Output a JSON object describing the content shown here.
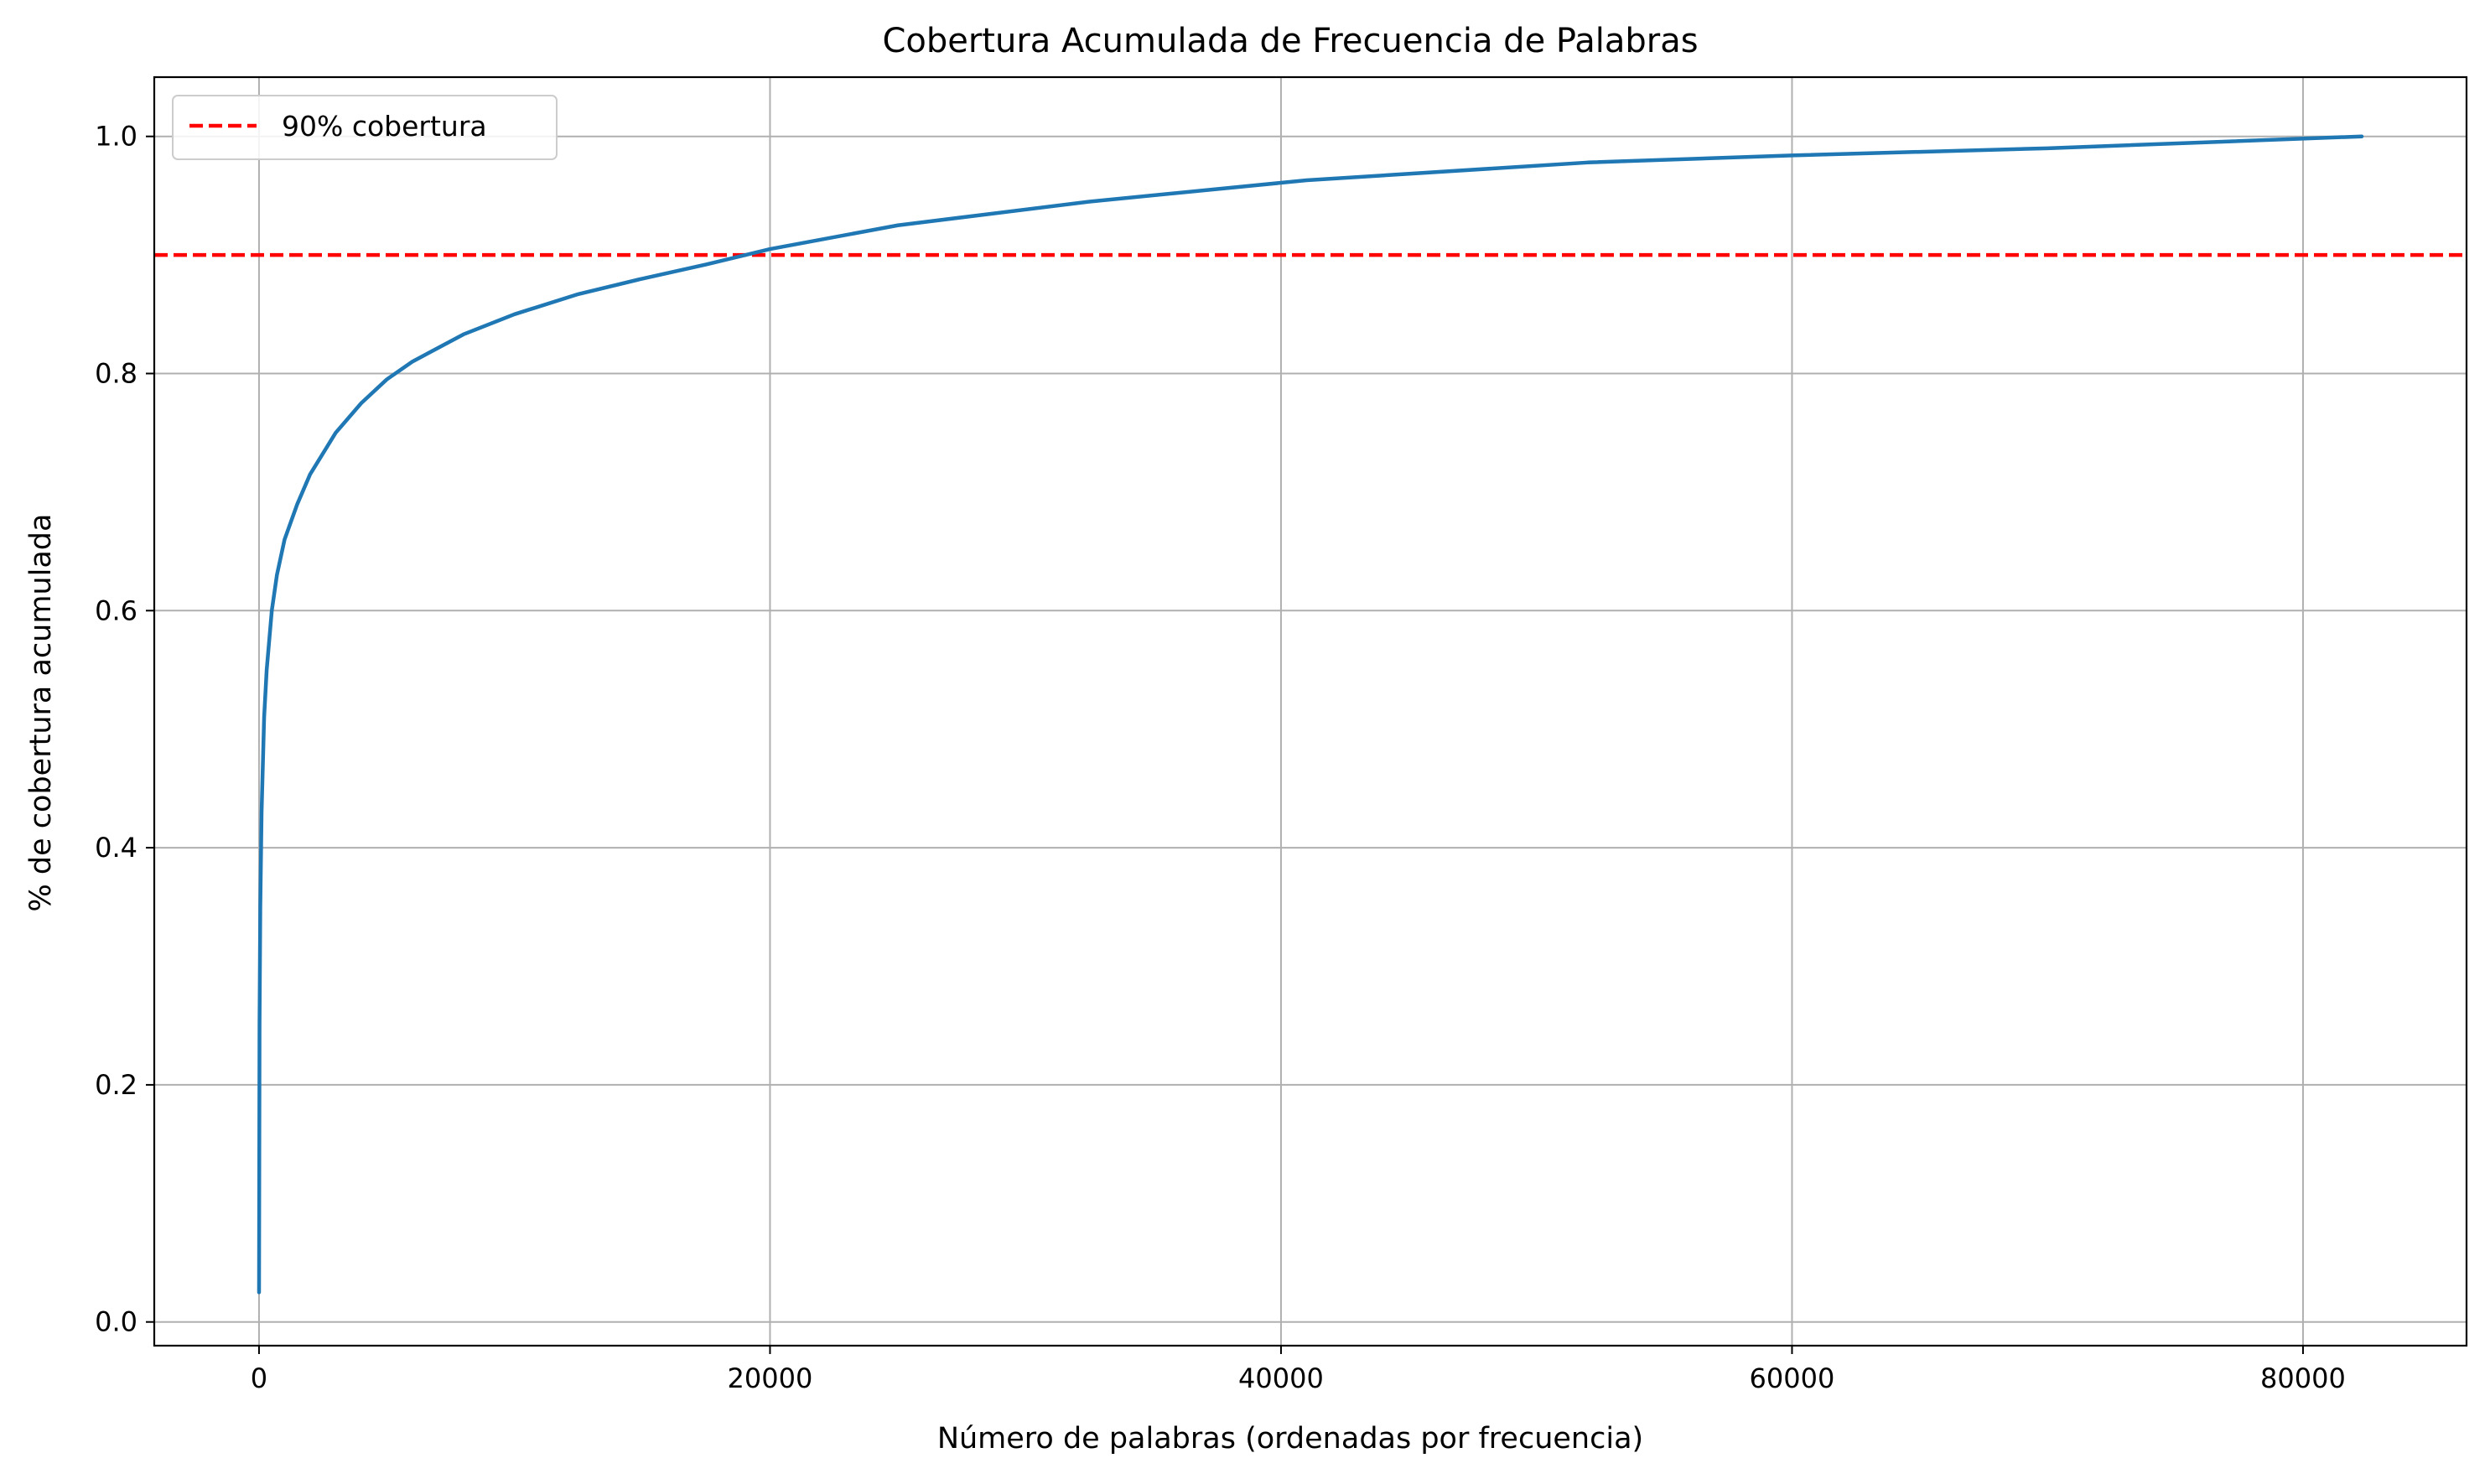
{
  "chart_data": {
    "type": "line",
    "title": "Cobertura Acumulada de Frecuencia de Palabras",
    "xlabel": "Número de palabras (ordenadas por frecuencia)",
    "ylabel": "% de cobertura acumulada",
    "xlim": [
      -4100,
      86400
    ],
    "ylim": [
      -0.02,
      1.05
    ],
    "xticks": [
      0,
      20000,
      40000,
      60000,
      80000
    ],
    "xtick_labels": [
      "0",
      "20000",
      "40000",
      "60000",
      "80000"
    ],
    "yticks": [
      0.0,
      0.2,
      0.4,
      0.6,
      0.8,
      1.0
    ],
    "ytick_labels": [
      "0.0",
      "0.2",
      "0.4",
      "0.6",
      "0.8",
      "1.0"
    ],
    "grid": true,
    "legend_position": "top-left",
    "series": [
      {
        "color": "#1f77b4",
        "x": [
          1,
          20,
          50,
          100,
          200,
          300,
          500,
          700,
          1000,
          1500,
          2000,
          3000,
          4000,
          5000,
          6000,
          8000,
          10000,
          12500,
          15000,
          17500,
          20000,
          25000,
          32500,
          41000,
          52000,
          60000,
          70000,
          82300
        ],
        "y": [
          0.025,
          0.25,
          0.35,
          0.43,
          0.51,
          0.55,
          0.6,
          0.63,
          0.66,
          0.69,
          0.715,
          0.75,
          0.775,
          0.795,
          0.81,
          0.833,
          0.85,
          0.867,
          0.88,
          0.892,
          0.905,
          0.925,
          0.945,
          0.963,
          0.978,
          0.984,
          0.99,
          1.0
        ]
      },
      {
        "name": "90% cobertura",
        "color": "#ff0000",
        "style": "dashed",
        "y_constant": 0.9
      }
    ]
  }
}
